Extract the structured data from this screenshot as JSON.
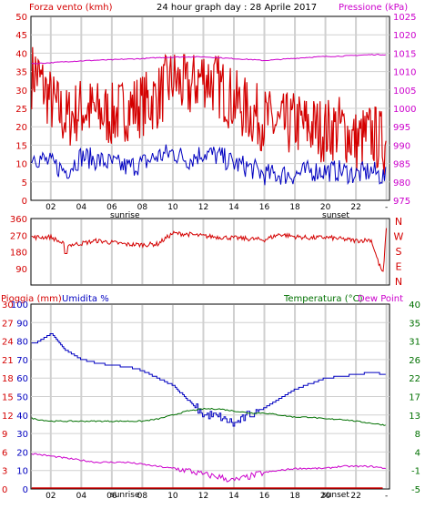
{
  "header": {
    "left_label": "Forza vento (kmh)",
    "title": "24 hour graph day : 28 Aprile 2017",
    "right_label": "Pressione (kPa)"
  },
  "colors": {
    "red": "#d40000",
    "pink": "#cc00cc",
    "blue": "#0000c0",
    "green": "#007000",
    "grid": "#d0d0d0",
    "frame": "#000000"
  },
  "x_ticks": [
    "02",
    "04",
    "06",
    "08",
    "10",
    "12",
    "14",
    "16",
    "18",
    "20",
    "22",
    "-"
  ],
  "sun_labels": {
    "sunrise": "sunrise",
    "sunset": "sunset"
  },
  "chart_data": [
    {
      "type": "line",
      "title": "24 hour graph day : 28 Aprile 2017",
      "ylabel_left": "Forza vento (kmh)",
      "ylabel_right": "Pressione (kPa)",
      "ylim_left": [
        0,
        50
      ],
      "ylim_right": [
        975,
        1025
      ],
      "yticks_left": [
        "0",
        "5",
        "10",
        "15",
        "20",
        "25",
        "30",
        "35",
        "40",
        "45",
        "50"
      ],
      "yticks_right": [
        "975",
        "980",
        "985",
        "990",
        "995",
        "1000",
        "1005",
        "1010",
        "1015",
        "1020",
        "1025"
      ],
      "x_hours": [
        0,
        1,
        2,
        3,
        4,
        5,
        6,
        7,
        8,
        9,
        10,
        11,
        12,
        13,
        14,
        15,
        16,
        17,
        18,
        19,
        20,
        21,
        22,
        23,
        24
      ],
      "series": [
        {
          "name": "gust",
          "color": "#d40000",
          "axis": "left",
          "values": [
            30,
            35,
            27,
            22,
            25,
            24,
            23,
            25,
            26,
            28,
            33,
            30,
            34,
            31,
            27,
            24,
            22,
            20,
            21,
            20,
            19,
            20,
            16,
            18,
            15
          ]
        },
        {
          "name": "wind",
          "color": "#0000c0",
          "axis": "left",
          "values": [
            13,
            12,
            10,
            8,
            12,
            11,
            10,
            9,
            10,
            12,
            13,
            11,
            13,
            12,
            10,
            9,
            7,
            7,
            7,
            8,
            8,
            8,
            7,
            8,
            6
          ]
        },
        {
          "name": "pressure",
          "color": "#cc00cc",
          "axis": "right",
          "values": [
            1012.5,
            1012.2,
            1012.4,
            1012.7,
            1012.9,
            1013.1,
            1013.2,
            1013.4,
            1013.5,
            1013.8,
            1013.9,
            1014.0,
            1014.0,
            1013.8,
            1013.5,
            1013.3,
            1013.0,
            1013.3,
            1013.6,
            1013.9,
            1014.1,
            1014.2,
            1014.4,
            1014.6,
            1014.6
          ]
        }
      ]
    },
    {
      "type": "line",
      "yticks_left": [
        "90",
        "180",
        "270",
        "360"
      ],
      "ylim_left": [
        0,
        360
      ],
      "direction_labels": [
        "N",
        "W",
        "S",
        "E",
        "N"
      ],
      "series": [
        {
          "name": "wind_direction",
          "color": "#d40000",
          "x_hours": [
            0,
            1,
            2,
            3,
            4,
            5,
            6,
            7,
            8,
            9,
            10,
            11,
            12,
            13,
            14,
            15,
            16,
            17,
            18,
            19,
            20,
            21,
            22,
            23,
            23.5,
            23.8,
            24
          ],
          "values": [
            265,
            258,
            260,
            215,
            225,
            240,
            230,
            220,
            218,
            222,
            280,
            275,
            265,
            260,
            255,
            250,
            245,
            275,
            262,
            255,
            258,
            250,
            240,
            245,
            115,
            60,
            330
          ]
        }
      ]
    },
    {
      "type": "line",
      "ylabel_left_rain": "Pioggia (mm)",
      "ylabel_left_hum": "Umidita %",
      "ylabel_right_temp": "Temperatura (°C)",
      "ylabel_right_dew": "Dew Point",
      "yticks_rain": [
        "0",
        "3",
        "6",
        "9",
        "12",
        "15",
        "18",
        "21",
        "24",
        "27",
        "30"
      ],
      "yticks_hum": [
        "0",
        "10",
        "20",
        "30",
        "40",
        "50",
        "60",
        "70",
        "80",
        "90",
        "100"
      ],
      "yticks_temp": [
        "-5",
        "-1",
        "4",
        "8",
        "13",
        "17",
        "22",
        "26",
        "31",
        "35",
        "40"
      ],
      "ylim_hum": [
        0,
        100
      ],
      "ylim_temp": [
        -5,
        40
      ],
      "x_hours": [
        0,
        1,
        2,
        3,
        4,
        5,
        6,
        7,
        8,
        9,
        10,
        11,
        12,
        13,
        14,
        15,
        16,
        17,
        18,
        19,
        20,
        21,
        22,
        23,
        24
      ],
      "series": [
        {
          "name": "humidity",
          "color": "#0000c0",
          "values": [
            80,
            79,
            84,
            75,
            70,
            68,
            67,
            66,
            64,
            60,
            56,
            48,
            40,
            39,
            35,
            40,
            44,
            49,
            54,
            57,
            60,
            61,
            62,
            63,
            62
          ]
        },
        {
          "name": "temperature",
          "color": "#007000",
          "values": [
            13,
            12,
            11.5,
            11.5,
            11.5,
            11.5,
            11.5,
            11.5,
            11.5,
            12,
            13,
            14,
            14.5,
            14.5,
            14,
            13.5,
            13.5,
            13,
            12.5,
            12.5,
            12,
            12,
            11.5,
            11,
            10.5
          ]
        },
        {
          "name": "dew_point",
          "color": "#cc00cc",
          "values": [
            4,
            3.5,
            3,
            2.5,
            2,
            1.5,
            1.5,
            1.5,
            1,
            0.5,
            0,
            -0.5,
            -1.5,
            -2,
            -3,
            -2,
            -1,
            -0.5,
            0,
            0,
            0,
            0.5,
            0.5,
            0.5,
            0
          ]
        },
        {
          "name": "rain",
          "color": "#d40000",
          "values": [
            0,
            0,
            0,
            0,
            0,
            0,
            0,
            0,
            0,
            0,
            0,
            0,
            0,
            0,
            0,
            0,
            0,
            0,
            0,
            0,
            0,
            0,
            0,
            0,
            0
          ]
        }
      ]
    }
  ]
}
